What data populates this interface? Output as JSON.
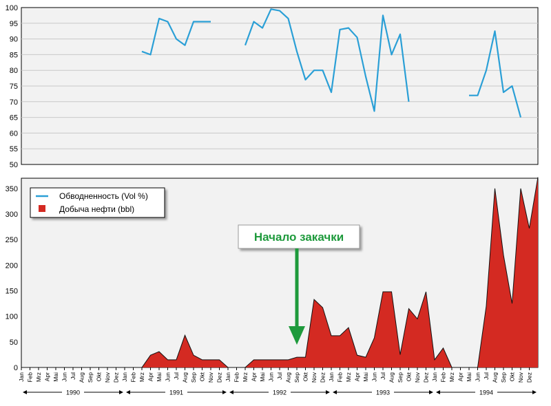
{
  "chart_data": [
    {
      "type": "line",
      "title": "",
      "xlabel": "",
      "ylabel": "",
      "ylim": [
        50,
        100
      ],
      "yticks": [
        50,
        55,
        60,
        65,
        70,
        75,
        80,
        85,
        90,
        95,
        100
      ],
      "grid": true,
      "months": [
        "Jan",
        "Feb",
        "Mrz",
        "Apr",
        "Mai",
        "Jun",
        "Jul",
        "Aug",
        "Sep",
        "Okt",
        "Nov",
        "Dez"
      ],
      "years": [
        "1990",
        "1991",
        "1992",
        "1993",
        "1994"
      ],
      "series": [
        {
          "name": "Обводненность (Vol %)",
          "color": "#2a9fd6",
          "points": [
            {
              "x": "1991-Mrz",
              "y": 86
            },
            {
              "x": "1991-Apr",
              "y": 85
            },
            {
              "x": "1991-Mai",
              "y": 96.5
            },
            {
              "x": "1991-Jun",
              "y": 95.5
            },
            {
              "x": "1991-Jul",
              "y": 90
            },
            {
              "x": "1991-Aug",
              "y": 88
            },
            {
              "x": "1991-Sep",
              "y": 95.5
            },
            {
              "x": "1991-Okt",
              "y": 95.5
            },
            {
              "x": "1991-Nov",
              "y": 95.5
            },
            {
              "x": "1992-Mrz",
              "y": 88
            },
            {
              "x": "1992-Apr",
              "y": 95.5
            },
            {
              "x": "1992-Mai",
              "y": 93.5
            },
            {
              "x": "1992-Jun",
              "y": 99.5
            },
            {
              "x": "1992-Jul",
              "y": 99
            },
            {
              "x": "1992-Aug",
              "y": 96.5
            },
            {
              "x": "1992-Sep",
              "y": 86
            },
            {
              "x": "1992-Okt",
              "y": 77
            },
            {
              "x": "1992-Nov",
              "y": 80
            },
            {
              "x": "1992-Dez",
              "y": 80
            },
            {
              "x": "1993-Jan",
              "y": 73
            },
            {
              "x": "1993-Feb",
              "y": 93
            },
            {
              "x": "1993-Mrz",
              "y": 93.5
            },
            {
              "x": "1993-Apr",
              "y": 90.5
            },
            {
              "x": "1993-Mai",
              "y": 78
            },
            {
              "x": "1993-Jun",
              "y": 67
            },
            {
              "x": "1993-Jul",
              "y": 97.5
            },
            {
              "x": "1993-Aug",
              "y": 85
            },
            {
              "x": "1993-Sep",
              "y": 91.5
            },
            {
              "x": "1993-Okt",
              "y": 70
            },
            {
              "x": "1994-Mai",
              "y": 72
            },
            {
              "x": "1994-Jun",
              "y": 72
            },
            {
              "x": "1994-Jul",
              "y": 80
            },
            {
              "x": "1994-Aug",
              "y": 92.5
            },
            {
              "x": "1994-Sep",
              "y": 73
            },
            {
              "x": "1994-Okt",
              "y": 75
            },
            {
              "x": "1994-Nov",
              "y": 65
            }
          ]
        }
      ]
    },
    {
      "type": "area",
      "title": "",
      "xlabel": "",
      "ylabel": "",
      "ylim": [
        0,
        370
      ],
      "yticks": [
        0,
        50,
        100,
        150,
        200,
        250,
        300,
        350
      ],
      "grid": false,
      "legend_position": "top-left",
      "annotation": "Начало закачки",
      "annotation_x": "1992-Sep",
      "series": [
        {
          "name": "Добыча нефти (bbl)",
          "color": "#d42a22",
          "values": [
            0,
            0,
            0,
            0,
            0,
            0,
            0,
            0,
            0,
            0,
            0,
            0,
            0,
            0,
            0,
            24,
            31,
            15,
            15,
            63,
            24,
            15,
            15,
            15,
            0,
            0,
            0,
            15,
            15,
            15,
            15,
            15,
            20,
            20,
            133,
            117,
            62,
            62,
            78,
            24,
            20,
            58,
            148,
            148,
            25,
            115,
            95,
            148,
            15,
            38,
            0,
            0,
            0,
            0,
            120,
            350,
            220,
            125,
            350,
            272,
            372
          ]
        }
      ]
    }
  ]
}
